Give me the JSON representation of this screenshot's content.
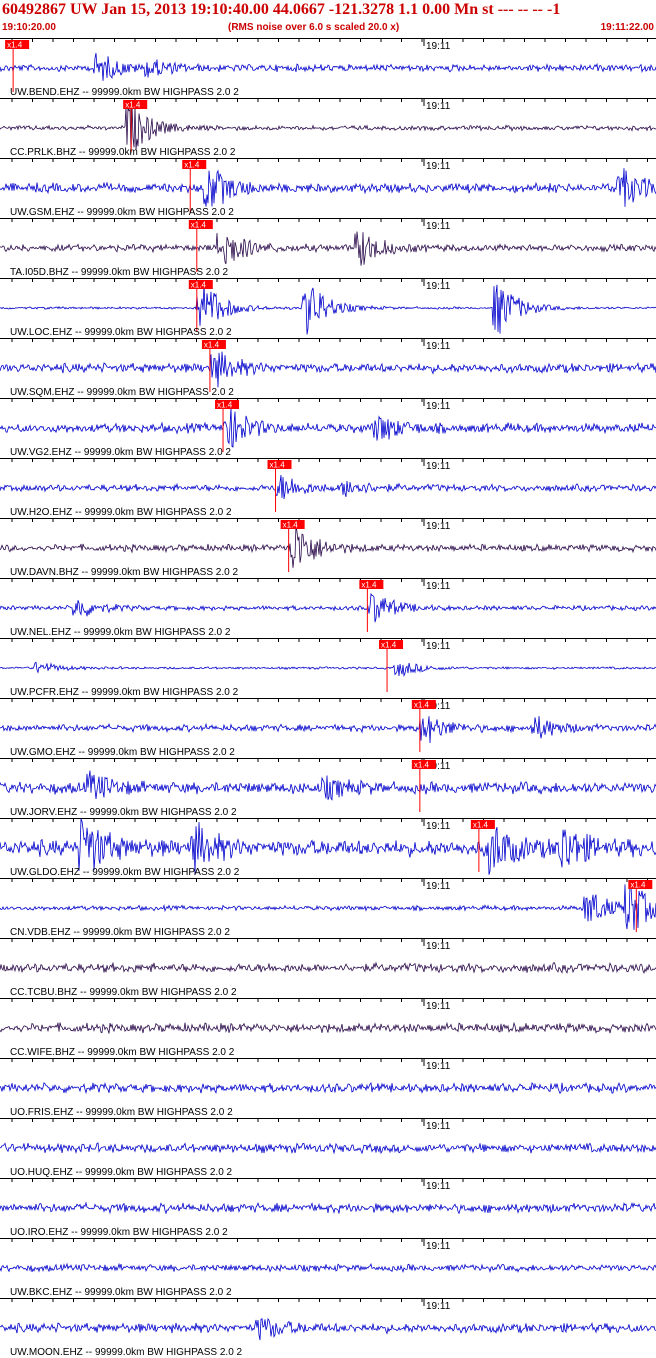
{
  "header": {
    "title": "60492867 UW Jan 15, 2013 19:10:40.00   44.0667 -121.3278  1.1 0.00 Mn st --- -- --  -1",
    "start_time": "19:10:20.00",
    "note": "(RMS noise over 6.0 s scaled 20.0 x)",
    "end_time": "19:11:22.00"
  },
  "colors": {
    "blue": "#0000cc",
    "dark": "#2a0a4a",
    "pick": "#ff0000",
    "header": "#cc0000"
  },
  "tick_label": "19:11",
  "pick_label": "x1.4",
  "traces": [
    {
      "label": "UW.BEND.EHZ -- 99999.0km BW  HIGHPASS  2.0  2",
      "color": "blue",
      "pick": 0.02,
      "events": [
        [
          0.15,
          14
        ],
        [
          0.23,
          8
        ]
      ],
      "noise": 3
    },
    {
      "label": "CC.PRLK.BHZ -- 99999.0km BW  HIGHPASS  2.0  2",
      "color": "dark",
      "pick": 0.2,
      "events": [
        [
          0.2,
          26
        ]
      ],
      "noise": 2
    },
    {
      "label": "UW.GSM.EHZ -- 99999.0km BW  HIGHPASS  2.0  2",
      "color": "blue",
      "pick": 0.29,
      "events": [
        [
          0.32,
          22
        ],
        [
          0.95,
          18
        ]
      ],
      "noise": 4
    },
    {
      "label": "TA.I05D.BHZ -- 99999.0km BW  HIGHPASS  2.0  2",
      "color": "dark",
      "pick": 0.3,
      "events": [
        [
          0.34,
          22
        ],
        [
          0.55,
          18
        ]
      ],
      "noise": 3
    },
    {
      "label": "UW.LOC.EHZ -- 99999.0km BW  HIGHPASS  2.0  2",
      "color": "blue",
      "pick": 0.3,
      "events": [
        [
          0.31,
          28
        ],
        [
          0.47,
          28
        ],
        [
          0.76,
          28
        ]
      ],
      "noise": 1
    },
    {
      "label": "UW.SQM.EHZ -- 99999.0km BW  HIGHPASS  2.0  2",
      "color": "blue",
      "pick": 0.32,
      "events": [
        [
          0.33,
          16
        ]
      ],
      "noise": 4
    },
    {
      "label": "UW.VG2.EHZ -- 99999.0km BW  HIGHPASS  2.0  2",
      "color": "blue",
      "pick": 0.34,
      "events": [
        [
          0.35,
          20
        ],
        [
          0.58,
          12
        ]
      ],
      "noise": 4
    },
    {
      "label": "UW.H2O.EHZ -- 99999.0km BW  HIGHPASS  2.0  2",
      "color": "blue",
      "pick": 0.42,
      "events": [
        [
          0.43,
          12
        ],
        [
          0.53,
          8
        ]
      ],
      "noise": 3
    },
    {
      "label": "UW.DAVN.BHZ -- 99999.0km BW  HIGHPASS  2.0  2",
      "color": "dark",
      "pick": 0.44,
      "events": [
        [
          0.45,
          26
        ]
      ],
      "noise": 3
    },
    {
      "label": "UW.NEL.EHZ -- 99999.0km BW  HIGHPASS  2.0  2",
      "color": "blue",
      "pick": 0.56,
      "events": [
        [
          0.57,
          16
        ],
        [
          0.12,
          10
        ]
      ],
      "noise": 2
    },
    {
      "label": "UW.PCFR.EHZ -- 99999.0km BW  HIGHPASS  2.0  2",
      "color": "blue",
      "pick": 0.59,
      "events": [
        [
          0.61,
          8
        ],
        [
          0.06,
          6
        ]
      ],
      "noise": 1
    },
    {
      "label": "UW.GMO.EHZ -- 99999.0km BW  HIGHPASS  2.0  2",
      "color": "blue",
      "pick": 0.64,
      "events": [
        [
          0.65,
          14
        ],
        [
          0.82,
          10
        ]
      ],
      "noise": 3
    },
    {
      "label": "UW.JORV.EHZ -- 99999.0km BW  HIGHPASS  2.0  2",
      "color": "blue",
      "pick": 0.64,
      "events": [
        [
          0.14,
          12
        ],
        [
          0.5,
          8
        ]
      ],
      "noise": 5
    },
    {
      "label": "UW.GLDO.EHZ -- 99999.0km BW  HIGHPASS  2.0  2",
      "color": "blue",
      "pick": 0.73,
      "events": [
        [
          0.13,
          28
        ],
        [
          0.3,
          20
        ],
        [
          0.75,
          24
        ],
        [
          0.86,
          22
        ]
      ],
      "noise": 7
    },
    {
      "label": "CN.VDB.EHZ -- 99999.0km BW  HIGHPASS  2.0  2",
      "color": "blue",
      "pick": 0.97,
      "events": [
        [
          0.9,
          18
        ],
        [
          0.96,
          28
        ]
      ],
      "noise": 2
    },
    {
      "label": "CC.TCBU.BHZ -- 99999.0km BW  HIGHPASS  2.0  2",
      "color": "dark",
      "pick": null,
      "events": [],
      "noise": 4
    },
    {
      "label": "CC.WIFE.BHZ -- 99999.0km BW  HIGHPASS  2.0  2",
      "color": "dark",
      "pick": null,
      "events": [],
      "noise": 4
    },
    {
      "label": "UO.FRIS.EHZ -- 99999.0km BW  HIGHPASS  2.0  2",
      "color": "blue",
      "pick": null,
      "events": [],
      "noise": 4
    },
    {
      "label": "UO.HUQ.EHZ -- 99999.0km BW  HIGHPASS  2.0  2",
      "color": "blue",
      "pick": null,
      "events": [],
      "noise": 4
    },
    {
      "label": "UO.IRO.EHZ -- 99999.0km BW  HIGHPASS  2.0  2",
      "color": "blue",
      "pick": null,
      "events": [],
      "noise": 4
    },
    {
      "label": "UW.BKC.EHZ -- 99999.0km BW  HIGHPASS  2.0  2",
      "color": "blue",
      "pick": null,
      "events": [],
      "noise": 3
    },
    {
      "label": "UW.MOON.EHZ -- 99999.0km BW  HIGHPASS  2.0  2",
      "color": "blue",
      "pick": null,
      "events": [
        [
          0.4,
          10
        ]
      ],
      "noise": 4
    }
  ]
}
